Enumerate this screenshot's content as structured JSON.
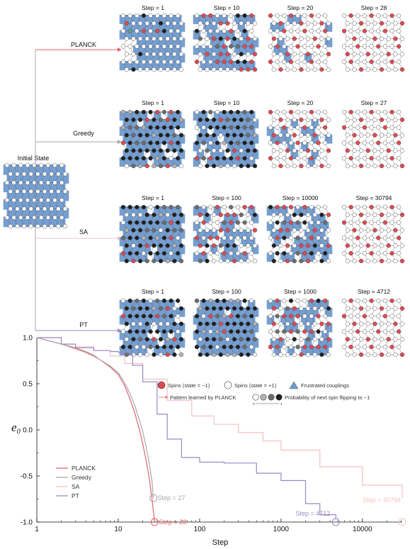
{
  "initial_state_label": "Initial State",
  "rows": [
    {
      "method": "PLANCK",
      "color": "#e06466",
      "steps": [
        "Step = 1",
        "Step = 10",
        "Step = 20",
        "Step = 28"
      ]
    },
    {
      "method": "Greedy",
      "color": "#a8a8ad",
      "steps": [
        "Step = 1",
        "Step = 10",
        "Step = 20",
        "Step = 27"
      ]
    },
    {
      "method": "SA",
      "color": "#f4c1c4",
      "steps": [
        "Step = 1",
        "Step = 100",
        "Step = 10000",
        "Step = 30794"
      ]
    },
    {
      "method": "PT",
      "color": "#9b89c2",
      "steps": [
        "Step = 1",
        "Step = 100",
        "Step = 1000",
        "Step = 4712"
      ]
    }
  ],
  "colors": {
    "spin_down": "#de4a4f",
    "spin_up": "#ffffff",
    "frustrated": "#6f9acf",
    "highlight": "#5aa48f",
    "planck": "#e06466",
    "greedy": "#a8a8ad",
    "sa": "#f4c1c4",
    "pt": "#9b89c2"
  },
  "legend": {
    "spins_down": "Spins (state = −1)",
    "spins_up": "Spins (state = +1)",
    "frustrated": "Frustrated couplings",
    "pattern": "Pattern learned by PLANCK",
    "probability": "Probability of next spin flipping to −1",
    "prob_min": "0",
    "prob_max": "1"
  },
  "chart_data": {
    "type": "line",
    "xlabel": "Step",
    "ylabel": "e₀",
    "x_scale": "log",
    "xlim": [
      1,
      30794
    ],
    "ylim": [
      -1.0,
      1.0
    ],
    "xticks": [
      "1",
      "10",
      "100",
      "1000",
      "10000"
    ],
    "yticks": [
      "1.0",
      "0.5",
      "0.0",
      "-0.5",
      "-1.0"
    ],
    "legend_position": "bottom-left",
    "series": [
      {
        "name": "PLANCK",
        "x": [
          1,
          2,
          3,
          4,
          5,
          6,
          8,
          10,
          12,
          14,
          16,
          18,
          20,
          22,
          24,
          26,
          28
        ],
        "y": [
          1.0,
          0.93,
          0.88,
          0.84,
          0.8,
          0.76,
          0.68,
          0.6,
          0.48,
          0.33,
          0.18,
          0.02,
          -0.15,
          -0.33,
          -0.52,
          -0.75,
          -1.0
        ]
      },
      {
        "name": "Greedy",
        "x": [
          1,
          2,
          3,
          4,
          5,
          6,
          8,
          10,
          12,
          14,
          16,
          18,
          20,
          22,
          24,
          26,
          27
        ],
        "y": [
          1.0,
          0.93,
          0.89,
          0.85,
          0.81,
          0.76,
          0.69,
          0.62,
          0.51,
          0.39,
          0.26,
          0.12,
          -0.02,
          -0.18,
          -0.36,
          -0.56,
          -0.74
        ]
      },
      {
        "name": "SA",
        "x": [
          1,
          2,
          3,
          5,
          8,
          12,
          20,
          40,
          80,
          150,
          300,
          600,
          1000,
          3000,
          10000,
          30794
        ],
        "y": [
          1.0,
          0.93,
          0.9,
          0.86,
          0.8,
          0.72,
          0.55,
          0.32,
          0.15,
          0.06,
          -0.03,
          -0.12,
          -0.22,
          -0.4,
          -0.6,
          -0.74
        ]
      },
      {
        "name": "PT",
        "x": [
          1,
          2,
          3,
          5,
          8,
          10,
          15,
          20,
          30,
          40,
          60,
          100,
          200,
          500,
          1000,
          2000,
          3000,
          4712
        ],
        "y": [
          1.0,
          0.93,
          0.89,
          0.86,
          0.85,
          0.84,
          0.7,
          0.52,
          0.17,
          -0.1,
          -0.3,
          -0.35,
          -0.36,
          -0.47,
          -0.55,
          -0.8,
          -0.92,
          -0.97
        ]
      }
    ],
    "annotations": [
      {
        "text": "Step = 27",
        "x": 27,
        "y": -0.74,
        "series": "Greedy"
      },
      {
        "text": "Step = 28",
        "x": 28,
        "y": -1.0,
        "series": "PLANCK"
      },
      {
        "text": "Step = 4712",
        "x": 4712,
        "y": -1.0,
        "series": "PT"
      },
      {
        "text": "Step = 30794",
        "x": 30794,
        "y": -1.0,
        "series": "SA"
      }
    ]
  }
}
